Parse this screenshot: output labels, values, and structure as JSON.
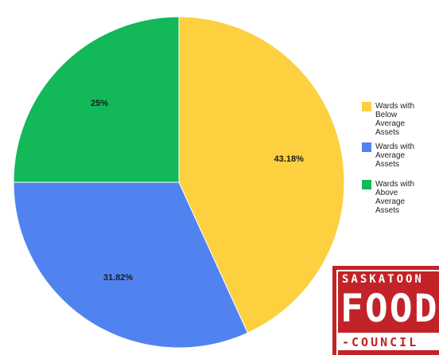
{
  "chart_data": {
    "type": "pie",
    "title": "",
    "legend_position": "right",
    "slices": [
      {
        "name": "Wards with Below Average Assets",
        "value": 43.18,
        "label": "43.18%",
        "color": "#fcd03f"
      },
      {
        "name": "Wards with Average Assets",
        "value": 31.82,
        "label": "31.82%",
        "color": "#5183f0"
      },
      {
        "name": "Wards with Above Average Assets",
        "value": 25,
        "label": "25%",
        "color": "#13b858"
      }
    ]
  },
  "logo": {
    "line1": "SASKATOON",
    "line2": "FOOD",
    "line3": "-COUNCIL"
  }
}
